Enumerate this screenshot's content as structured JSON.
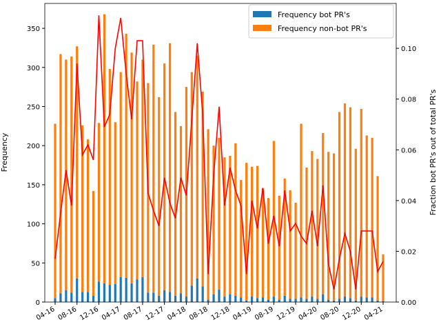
{
  "chart_data": {
    "type": "bar-line",
    "categories": [
      "04-16",
      null,
      null,
      null,
      "08-16",
      null,
      null,
      null,
      "12-16",
      null,
      null,
      null,
      "04-17",
      null,
      null,
      null,
      "08-17",
      null,
      null,
      null,
      "12-17",
      null,
      null,
      null,
      "04-18",
      null,
      null,
      null,
      "08-18",
      null,
      null,
      null,
      "12-18",
      null,
      null,
      null,
      "04-19",
      null,
      null,
      null,
      "08-19",
      null,
      null,
      null,
      "12-19",
      null,
      null,
      null,
      "04-20",
      null,
      null,
      null,
      "08-20",
      null,
      null,
      null,
      "12-20",
      null,
      null,
      null,
      "04-21"
    ],
    "y_label": "Frequency",
    "y2_label": "Fraction bot PR's out of total PR's",
    "ylim": [
      0,
      381.8
    ],
    "yticks": [
      0,
      50,
      100,
      150,
      200,
      250,
      300,
      350
    ],
    "y2lim": [
      0,
      0.1177
    ],
    "y2ticks": [
      {
        "value": 0,
        "label": "0.00"
      },
      {
        "value": 0.02,
        "label": "0.02"
      },
      {
        "value": 0.04,
        "label": "0.04"
      },
      {
        "value": 0.06,
        "label": "0.06"
      },
      {
        "value": 0.08,
        "label": "0.08"
      },
      {
        "value": 0.1,
        "label": "0.10"
      }
    ],
    "legend": "upper right",
    "series": [
      {
        "name": "Frequency bot PR's",
        "color": "#1f77b4",
        "values": [
          5,
          11,
          15,
          12,
          30,
          13,
          13,
          8,
          26,
          24,
          22,
          23,
          32,
          31,
          24,
          29,
          32,
          12,
          12,
          8,
          15,
          13,
          8,
          11,
          7,
          21,
          30,
          20,
          3,
          10,
          16,
          7,
          10,
          8,
          6,
          2,
          7,
          5,
          6,
          3,
          7,
          3,
          8,
          4,
          4,
          6,
          4,
          7,
          4,
          10,
          3,
          2,
          4,
          7,
          5,
          2,
          7,
          6,
          6,
          2,
          1
        ]
      },
      {
        "name": "Frequency non-bot PR's",
        "color": "#ff7f0e",
        "values": [
          223,
          306,
          295,
          302,
          297,
          213,
          195,
          134,
          203,
          344,
          276,
          207,
          262,
          312,
          295,
          253,
          278,
          268,
          317,
          254,
          290,
          318,
          235,
          214,
          268,
          273,
          285,
          249,
          218,
          190,
          194,
          178,
          177,
          195,
          150,
          176,
          166,
          169,
          139,
          130,
          199,
          133,
          150,
          139,
          123,
          222,
          168,
          186,
          179,
          206,
          189,
          188,
          239,
          247,
          244,
          194,
          240,
          207,
          204,
          159,
          60
        ]
      },
      {
        "color": "#ff0000",
        "axis": "y2",
        "values": [
          0.017,
          0.035,
          0.052,
          0.038,
          0.094,
          0.058,
          0.062,
          0.056,
          0.113,
          0.069,
          0.074,
          0.1,
          0.112,
          0.09,
          0.072,
          0.103,
          0.103,
          0.043,
          0.036,
          0.03,
          0.049,
          0.039,
          0.033,
          0.049,
          0.042,
          0.072,
          0.102,
          0.074,
          0.011,
          0.05,
          0.077,
          0.038,
          0.053,
          0.044,
          0.038,
          0.011,
          0.04,
          0.029,
          0.045,
          0.023,
          0.034,
          0.022,
          0.044,
          0.028,
          0.031,
          0.026,
          0.023,
          0.036,
          0.022,
          0.046,
          0.015,
          0.005,
          0.017,
          0.027,
          0.02,
          0.005,
          0.028,
          0.028,
          0.028,
          0.012,
          0.016
        ]
      }
    ]
  }
}
